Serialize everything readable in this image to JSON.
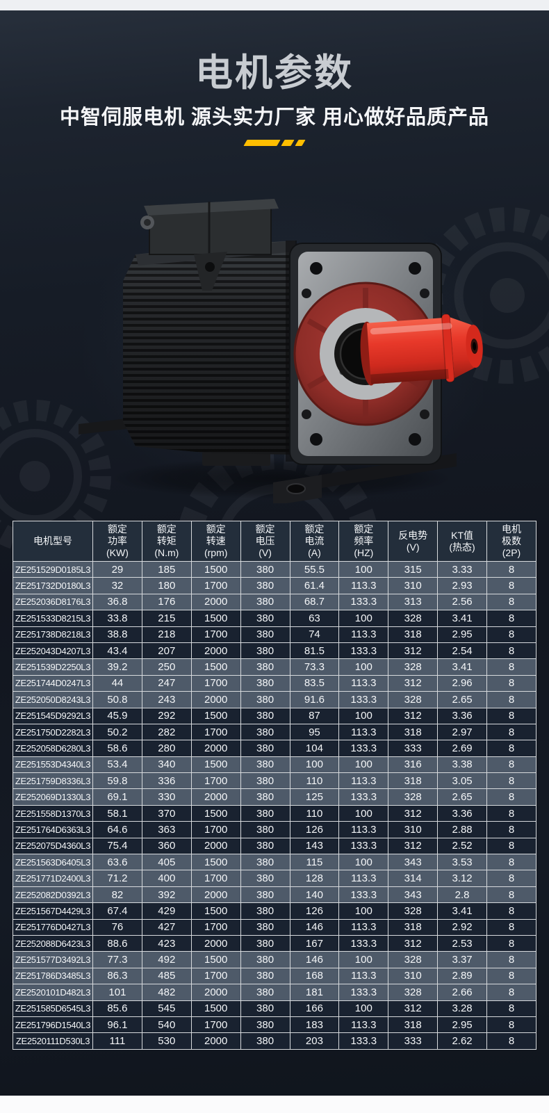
{
  "colors": {
    "strip_light": "#eef0f3",
    "bg_dark": "#141a24",
    "title_gray": "#c8ccd1",
    "subtitle_white": "#f5f6f8",
    "accent_yellow": "#ffbe00",
    "table_border": "#d7dadd",
    "header_bg": "#232e3b",
    "row_gray": "#4e5a69",
    "row_dark": "#192230",
    "cell_text": "#f4f6f8",
    "shaft_red": "#e03427"
  },
  "header": {
    "title": "电机参数",
    "subtitle": "中智伺服电机 源头实力厂家 用心做好品质产品"
  },
  "table": {
    "columns": [
      [
        "电机型号"
      ],
      [
        "额定",
        "功率",
        "(KW)"
      ],
      [
        "额定",
        "转矩",
        "(N.m)"
      ],
      [
        "额定",
        "转速",
        "(rpm)"
      ],
      [
        "额定",
        "电压",
        "(V)"
      ],
      [
        "额定",
        "电流",
        "(A)"
      ],
      [
        "额定",
        "频率",
        "(HZ)"
      ],
      [
        "反电势",
        "(V)"
      ],
      [
        "KT值",
        "(热态)"
      ],
      [
        "电机",
        "极数",
        "(2P)"
      ]
    ],
    "rows": [
      [
        "ZE251529D0185L3",
        "29",
        "185",
        "1500",
        "380",
        "55.5",
        "100",
        "315",
        "3.33",
        "8"
      ],
      [
        "ZE251732D0180L3",
        "32",
        "180",
        "1700",
        "380",
        "61.4",
        "113.3",
        "310",
        "2.93",
        "8"
      ],
      [
        "ZE252036D8176L3",
        "36.8",
        "176",
        "2000",
        "380",
        "68.7",
        "133.3",
        "313",
        "2.56",
        "8"
      ],
      [
        "ZE251533D8215L3",
        "33.8",
        "215",
        "1500",
        "380",
        "63",
        "100",
        "328",
        "3.41",
        "8"
      ],
      [
        "ZE251738D8218L3",
        "38.8",
        "218",
        "1700",
        "380",
        "74",
        "113.3",
        "318",
        "2.95",
        "8"
      ],
      [
        "ZE252043D4207L3",
        "43.4",
        "207",
        "2000",
        "380",
        "81.5",
        "133.3",
        "312",
        "2.54",
        "8"
      ],
      [
        "ZE251539D2250L3",
        "39.2",
        "250",
        "1500",
        "380",
        "73.3",
        "100",
        "328",
        "3.41",
        "8"
      ],
      [
        "ZE251744D0247L3",
        "44",
        "247",
        "1700",
        "380",
        "83.5",
        "113.3",
        "312",
        "2.96",
        "8"
      ],
      [
        "ZE252050D8243L3",
        "50.8",
        "243",
        "2000",
        "380",
        "91.6",
        "133.3",
        "328",
        "2.65",
        "8"
      ],
      [
        "ZE251545D9292L3",
        "45.9",
        "292",
        "1500",
        "380",
        "87",
        "100",
        "312",
        "3.36",
        "8"
      ],
      [
        "ZE251750D2282L3",
        "50.2",
        "282",
        "1700",
        "380",
        "95",
        "113.3",
        "318",
        "2.97",
        "8"
      ],
      [
        "ZE252058D6280L3",
        "58.6",
        "280",
        "2000",
        "380",
        "104",
        "133.3",
        "333",
        "2.69",
        "8"
      ],
      [
        "ZE251553D4340L3",
        "53.4",
        "340",
        "1500",
        "380",
        "100",
        "100",
        "316",
        "3.38",
        "8"
      ],
      [
        "ZE251759D8336L3",
        "59.8",
        "336",
        "1700",
        "380",
        "110",
        "113.3",
        "318",
        "3.05",
        "8"
      ],
      [
        "ZE252069D1330L3",
        "69.1",
        "330",
        "2000",
        "380",
        "125",
        "133.3",
        "328",
        "2.65",
        "8"
      ],
      [
        "ZE251558D1370L3",
        "58.1",
        "370",
        "1500",
        "380",
        "110",
        "100",
        "312",
        "3.36",
        "8"
      ],
      [
        "ZE251764D6363L3",
        "64.6",
        "363",
        "1700",
        "380",
        "126",
        "113.3",
        "310",
        "2.88",
        "8"
      ],
      [
        "ZE252075D4360L3",
        "75.4",
        "360",
        "2000",
        "380",
        "143",
        "133.3",
        "312",
        "2.52",
        "8"
      ],
      [
        "ZE251563D6405L3",
        "63.6",
        "405",
        "1500",
        "380",
        "115",
        "100",
        "343",
        "3.53",
        "8"
      ],
      [
        "ZE251771D2400L3",
        "71.2",
        "400",
        "1700",
        "380",
        "128",
        "113.3",
        "314",
        "3.12",
        "8"
      ],
      [
        "ZE252082D0392L3",
        "82",
        "392",
        "2000",
        "380",
        "140",
        "133.3",
        "343",
        "2.8",
        "8"
      ],
      [
        "ZE251567D4429L3",
        "67.4",
        "429",
        "1500",
        "380",
        "126",
        "100",
        "328",
        "3.41",
        "8"
      ],
      [
        "ZE251776D0427L3",
        "76",
        "427",
        "1700",
        "380",
        "146",
        "113.3",
        "318",
        "2.92",
        "8"
      ],
      [
        "ZE252088D6423L3",
        "88.6",
        "423",
        "2000",
        "380",
        "167",
        "133.3",
        "312",
        "2.53",
        "8"
      ],
      [
        "ZE251577D3492L3",
        "77.3",
        "492",
        "1500",
        "380",
        "146",
        "100",
        "328",
        "3.37",
        "8"
      ],
      [
        "ZE251786D3485L3",
        "86.3",
        "485",
        "1700",
        "380",
        "168",
        "113.3",
        "310",
        "2.89",
        "8"
      ],
      [
        "ZE2520101D482L3",
        "101",
        "482",
        "2000",
        "380",
        "181",
        "133.3",
        "328",
        "2.66",
        "8"
      ],
      [
        "ZE251585D6545L3",
        "85.6",
        "545",
        "1500",
        "380",
        "166",
        "100",
        "312",
        "3.28",
        "8"
      ],
      [
        "ZE251796D1540L3",
        "96.1",
        "540",
        "1700",
        "380",
        "183",
        "113.3",
        "318",
        "2.95",
        "8"
      ],
      [
        "ZE2520111D530L3",
        "111",
        "530",
        "2000",
        "380",
        "203",
        "133.3",
        "333",
        "2.62",
        "8"
      ]
    ]
  }
}
